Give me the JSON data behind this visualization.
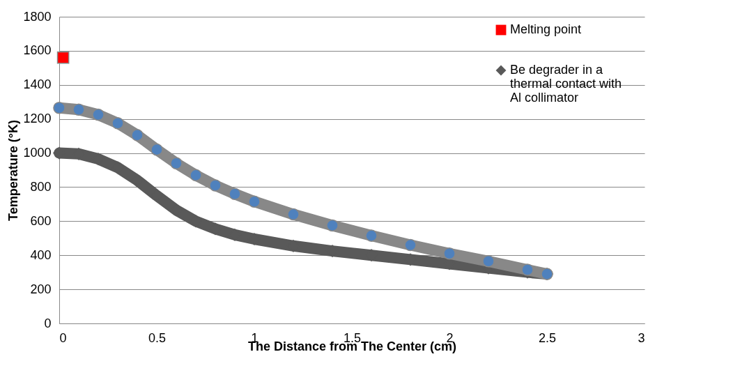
{
  "chart_data": {
    "type": "line",
    "xlabel": "The Distance from  The Center (cm)",
    "ylabel": "Temperature (°K)",
    "xlim": [
      0,
      3
    ],
    "xticks": [
      0,
      0.5,
      1,
      1.5,
      2,
      2.5,
      3
    ],
    "ylim": [
      0,
      1800
    ],
    "yticks": [
      0,
      200,
      400,
      600,
      800,
      1000,
      1200,
      1400,
      1600,
      1800
    ],
    "grid": "y",
    "legend": "top right",
    "series": [
      {
        "type": "scatter",
        "name": "Melting point",
        "color": "#ff0000",
        "marker": "square",
        "x": [
          0.02
        ],
        "values": [
          1560
        ]
      },
      {
        "name": "Be degrader in a thermal contact with Al collimator",
        "color": "#595959",
        "marker": "diamond",
        "x": [
          0,
          0.1,
          0.2,
          0.3,
          0.4,
          0.5,
          0.6,
          0.7,
          0.8,
          0.9,
          1.0,
          1.2,
          1.4,
          1.6,
          1.8,
          2.0,
          2.2,
          2.4,
          2.5
        ],
        "values": [
          1000,
          995,
          965,
          915,
          840,
          750,
          665,
          600,
          555,
          520,
          495,
          455,
          425,
          400,
          375,
          350,
          325,
          300,
          290
        ]
      },
      {
        "color": "#4f81bd",
        "marker": "circle",
        "x": [
          0,
          0.1,
          0.2,
          0.3,
          0.4,
          0.5,
          0.6,
          0.7,
          0.8,
          0.9,
          1.0,
          1.2,
          1.4,
          1.6,
          1.8,
          2.0,
          2.2,
          2.4,
          2.5
        ],
        "values": [
          1265,
          1255,
          1225,
          1175,
          1105,
          1020,
          940,
          870,
          810,
          760,
          715,
          640,
          575,
          515,
          460,
          410,
          365,
          315,
          290
        ]
      }
    ]
  }
}
